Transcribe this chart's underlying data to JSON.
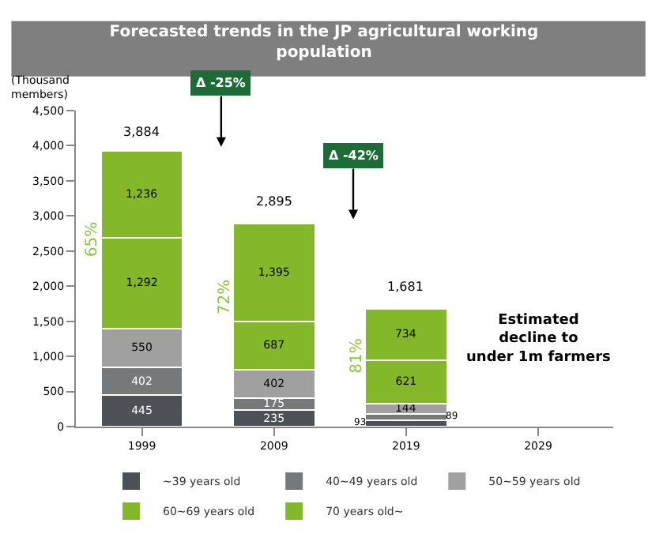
{
  "chart_data": {
    "type": "bar",
    "title": "Forecasted trends in the JP agricultural working population",
    "ylabel": "(Thousand members)",
    "categories": [
      "1999",
      "2009",
      "2019",
      "2029"
    ],
    "series": [
      {
        "name": "~39 years old",
        "color": "#4d5054",
        "values": [
          445,
          235,
          93,
          null
        ],
        "value_labels": [
          "445",
          "235",
          "93",
          null
        ]
      },
      {
        "name": "40~49 years old",
        "color": "#76797c",
        "values": [
          402,
          175,
          89,
          null
        ],
        "value_labels": [
          "402",
          "175",
          "89",
          null
        ]
      },
      {
        "name": "50~59 years old",
        "color": "#a0a0a0",
        "values": [
          550,
          402,
          144,
          null
        ],
        "value_labels": [
          "550",
          "402",
          "144",
          null
        ]
      },
      {
        "name": "60~69 years old",
        "color": "#84b82a",
        "values": [
          1292,
          687,
          621,
          null
        ],
        "value_labels": [
          "1,292",
          "687",
          "621",
          null
        ]
      },
      {
        "name": "70 years old~",
        "color": "#84b82a",
        "values": [
          1236,
          1395,
          734,
          null
        ],
        "value_labels": [
          "1,236",
          "1,395",
          "734",
          null
        ]
      }
    ],
    "stacked": true,
    "ylim": [
      0,
      4500
    ],
    "yticks": [
      {
        "value": 0,
        "label": "0"
      },
      {
        "value": 500,
        "label": "500"
      },
      {
        "value": 1000,
        "label": "1,000"
      },
      {
        "value": 1500,
        "label": "1,500"
      },
      {
        "value": 2000,
        "label": "2,000"
      },
      {
        "value": 2500,
        "label": "2,500"
      },
      {
        "value": 3000,
        "label": "3,000"
      },
      {
        "value": 3500,
        "label": "3,500"
      },
      {
        "value": 4000,
        "label": "4,000"
      },
      {
        "value": 4500,
        "label": "4,500"
      }
    ],
    "legend": "bottom",
    "annotations": [
      "65%",
      "72%",
      "81%",
      "Δ -25%",
      "Δ -42%",
      "Estimated decline to under 1m farmers",
      {
        "text": "3,884",
        "x": "1999",
        "y": 3884
      },
      {
        "text": "2,895",
        "x": "2009",
        "y": 2895
      },
      {
        "text": "1,681",
        "x": "2019",
        "y": 1681
      }
    ]
  }
}
